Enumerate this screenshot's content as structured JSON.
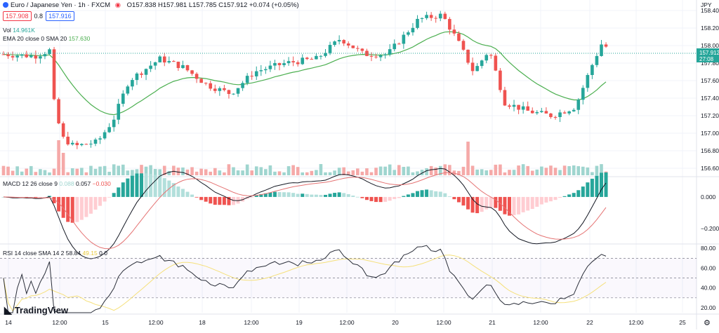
{
  "header": {
    "symbol": "Euro / Japanese Yen · 1h · FXCM",
    "ohlc": "O157.838 H157.981 L157.785 C157.912 +0.074 (+0.05%)",
    "bid": "157.908",
    "spread": "0.8",
    "ask": "157.916",
    "currency": "JPY"
  },
  "indicators": {
    "vol_label": "Vol",
    "vol_value": "14.961K",
    "ema_label": "EMA 20 close 0 SMA 20",
    "ema_value": "157.630",
    "macd_label": "MACD 12 26 close 9",
    "macd_v1": "0.088",
    "macd_v2": "0.057",
    "macd_v3": "−0.030",
    "rsi_label": "RSI 14 close SMA 14 2",
    "rsi_v1": "58.84",
    "rsi_v2": "49.15",
    "rsi_v3": "0",
    "rsi_v4": "0"
  },
  "last_price_tag": {
    "price": "157.912",
    "countdown": "27:08"
  },
  "logo": "TradingView",
  "colors": {
    "up": "#26a69a",
    "down": "#ef5350",
    "ema": "#4caf50",
    "macd": "#131722",
    "signal": "#e57373",
    "rsi": "#2a2e39",
    "rsi_ma": "#f5e07a"
  },
  "chart_data": [
    {
      "type": "candlestick",
      "title": "Euro / Japanese Yen · 1h · FXCM",
      "x_ticks": [
        "14",
        "12:00",
        "15",
        "12:00",
        "18",
        "12:00",
        "19",
        "12:00",
        "20",
        "12:00",
        "21",
        "12:00",
        "22",
        "12:00",
        "25"
      ],
      "y_ticks": [
        "158.400",
        "158.200",
        "158.000",
        "157.800",
        "157.600",
        "157.400",
        "157.200",
        "157.000",
        "156.800",
        "156.600"
      ],
      "ylim": [
        156.52,
        158.52
      ],
      "series": [
        {
          "name": "EMA 20",
          "type": "line"
        },
        {
          "name": "Vol",
          "type": "bar"
        }
      ],
      "grid": true
    },
    {
      "type": "bar",
      "title": "MACD 12 26 close 9",
      "y_ticks": [
        "0.000",
        "−0.200"
      ],
      "ylim": [
        -0.29,
        0.12
      ]
    },
    {
      "type": "line",
      "title": "RSI 14 close SMA 14 2",
      "y_ticks": [
        "80.00",
        "60.00",
        "40.00",
        "20.00"
      ],
      "ylim": [
        15,
        83
      ],
      "bands": [
        70,
        50,
        30
      ]
    }
  ]
}
